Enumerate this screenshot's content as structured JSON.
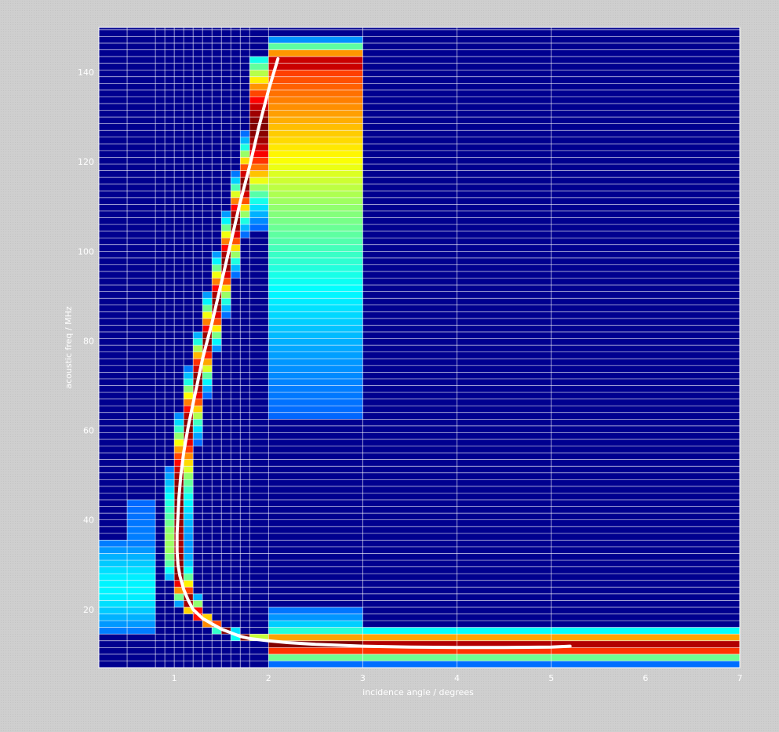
{
  "chart_data": {
    "type": "heatmap",
    "title": "",
    "xlabel": "incidence angle / degrees",
    "ylabel": "acoustic freq / MHz",
    "xlim": [
      0.2,
      7.0
    ],
    "ylim": [
      7,
      150
    ],
    "xticks": [
      1,
      2,
      3,
      4,
      5,
      6,
      7
    ],
    "yticks": [
      20,
      40,
      60,
      80,
      100,
      120,
      140
    ],
    "grid": true,
    "colormap": "jet",
    "background_color": "#00008f",
    "grid_color": "#ffffff",
    "curve_color": "#ffffff",
    "x_bin_edges": [
      0.2,
      0.5,
      0.8,
      0.9,
      1.0,
      1.1,
      1.2,
      1.3,
      1.4,
      1.5,
      1.6,
      1.7,
      1.8,
      2.0,
      3.0,
      4.0,
      5.0,
      7.0
    ],
    "y_bin_edges": [
      7,
      8.5,
      10,
      11.5,
      13,
      14.5,
      16,
      17.5,
      19,
      20.5,
      22,
      23.5,
      25,
      26.5,
      28,
      29.5,
      31,
      32.5,
      34,
      35.5,
      37,
      38.5,
      40,
      41.5,
      43,
      44.5,
      46,
      47.5,
      49,
      50.5,
      52,
      53.5,
      55,
      56.5,
      58,
      59.5,
      61,
      62.5,
      64,
      65.5,
      67,
      68.5,
      70,
      71.5,
      73,
      74.5,
      76,
      77.5,
      79,
      80.5,
      82,
      83.5,
      85,
      86.5,
      88,
      89.5,
      91,
      92.5,
      94,
      95.5,
      97,
      98.5,
      100,
      101.5,
      103,
      104.5,
      106,
      107.5,
      109,
      110.5,
      112,
      113.5,
      115,
      116.5,
      118,
      119.5,
      121,
      122.5,
      124,
      125.5,
      127,
      128.5,
      130,
      131.5,
      133,
      134.5,
      136,
      137.5,
      139,
      140.5,
      142,
      143.5,
      145,
      146.5,
      148,
      149.5
    ],
    "ridge_curve": {
      "x": [
        2.1,
        2.0,
        1.9,
        1.8,
        1.7,
        1.6,
        1.5,
        1.4,
        1.3,
        1.25,
        1.2,
        1.15,
        1.1,
        1.07,
        1.05,
        1.04,
        1.03,
        1.03,
        1.04,
        1.06,
        1.1,
        1.15,
        1.2,
        1.3,
        1.4,
        1.5,
        1.6,
        1.7,
        1.8,
        2.0,
        2.2,
        2.5,
        3.0,
        3.5,
        4.0,
        4.5,
        5.0,
        5.2
      ],
      "y": [
        143,
        136,
        128,
        119,
        111,
        102,
        93,
        84,
        76,
        71,
        66,
        61,
        55,
        50,
        45,
        41,
        37,
        33,
        30,
        27.5,
        24.5,
        22,
        20,
        18,
        16.8,
        15.6,
        14.8,
        14,
        13.5,
        13,
        12.6,
        12.2,
        11.8,
        11.6,
        11.5,
        11.5,
        11.6,
        11.8
      ]
    },
    "ridge_intensity": {
      "peak_angle": [
        1.0,
        1.2,
        1.45,
        1.7,
        1.95,
        2.5
      ],
      "peak_freq_low": [
        10,
        13,
        16,
        20,
        12,
        12
      ],
      "note_points_freq": [
        10,
        20,
        30,
        45,
        60,
        80,
        100,
        120,
        140
      ],
      "note_points_angle": [
        1.6,
        1.15,
        1.05,
        1.05,
        1.1,
        1.3,
        1.55,
        1.8,
        2.1
      ]
    }
  }
}
